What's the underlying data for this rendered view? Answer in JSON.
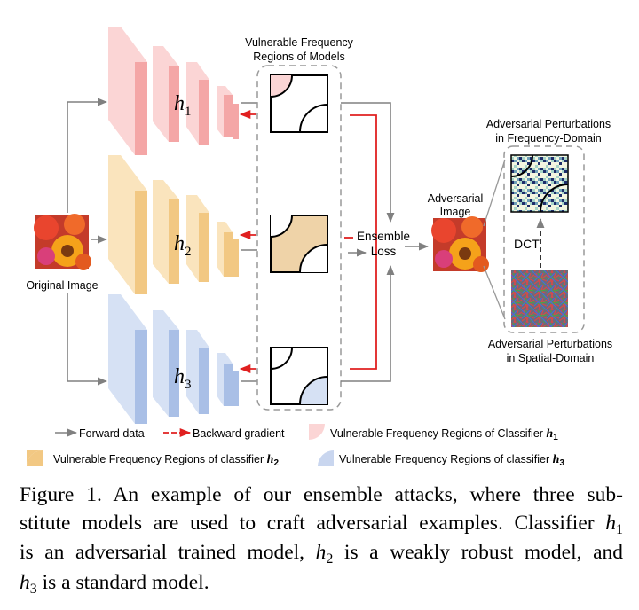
{
  "figure": {
    "region_title_line1": "Vulnerable Frequency",
    "region_title_line2": "Regions of Models",
    "original_image_label": "Original Image",
    "models": [
      {
        "sym": "h",
        "sub": "1",
        "color": "#f4a6a6",
        "color_light": "#fbd5d5"
      },
      {
        "sym": "h",
        "sub": "2",
        "color": "#f2c883",
        "color_light": "#fae4bd"
      },
      {
        "sym": "h",
        "sub": "3",
        "color": "#a9bfe6",
        "color_light": "#d6e1f4"
      }
    ],
    "ensemble_line1": "Ensemble",
    "ensemble_line2": "Loss",
    "adv_image_line1": "Adversarial",
    "adv_image_line2": "Image",
    "freq_title_line1": "Adversarial Perturbations",
    "freq_title_line2": "in Frequency-Domain",
    "dct_label": "DCT",
    "spatial_title_line1": "Adversarial Perturbations",
    "spatial_title_line2": "in Spatial-Domain"
  },
  "legend": {
    "forward": "Forward data",
    "backward": "Backward gradient",
    "region1_text": "Vulnerable Frequency Regions of Classifier",
    "region1_math": "h",
    "region1_sub": "1",
    "region2_text": "Vulnerable Frequency Regions of classifier",
    "region2_math": "h",
    "region2_sub": "2",
    "region3_text": "Vulnerable Frequency Regions of classifier",
    "region3_math": "h",
    "region3_sub": "3"
  },
  "colors": {
    "forward_arrow": "#808080",
    "backward_arrow": "#e02020"
  },
  "caption": {
    "l1": "Figure 1.   An example of our ensemble attacks, where three sub-",
    "l2": "stitute models are used to craft adversarial examples. Classifier",
    "l2_math": "h",
    "l2_sub": "1",
    "l3": "is an adversarial trained model,",
    "l3_math": "h",
    "l3_sub": "2",
    "l3_rest": "is a weakly robust model, and",
    "l4_math": "h",
    "l4_sub": "3",
    "l4_rest": "is a standard model."
  }
}
